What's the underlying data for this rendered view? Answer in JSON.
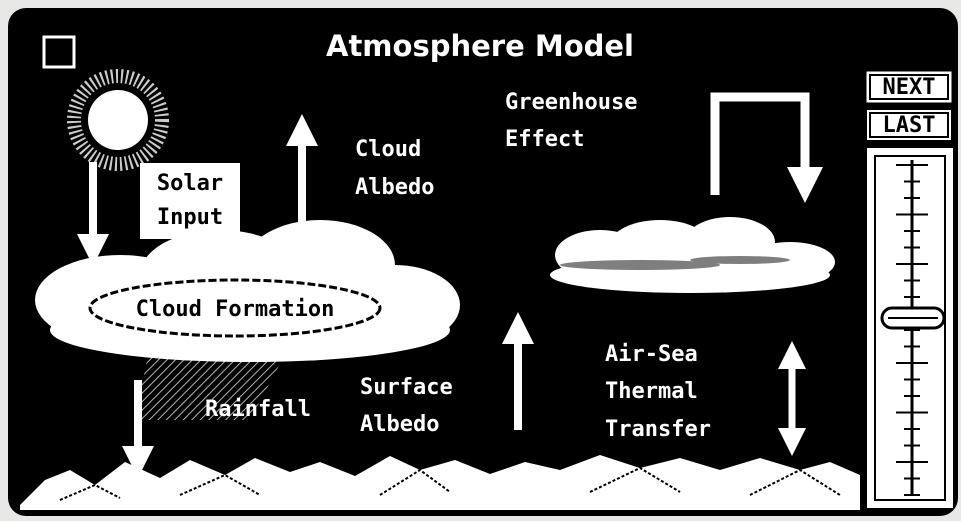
{
  "window": {
    "title": "Atmosphere Model"
  },
  "labels": {
    "solar_input": [
      "Solar",
      "Input"
    ],
    "cloud_albedo": [
      "Cloud",
      "Albedo"
    ],
    "greenhouse_effect": [
      "Greenhouse",
      "Effect"
    ],
    "cloud_formation": "Cloud Formation",
    "rainfall": "Rainfall",
    "surface_albedo": [
      "Surface",
      "Albedo"
    ],
    "air_sea_thermal_transfer": [
      "Air-Sea",
      "Thermal",
      "Transfer"
    ]
  },
  "buttons": [
    "NEXT",
    "LAST"
  ]
}
